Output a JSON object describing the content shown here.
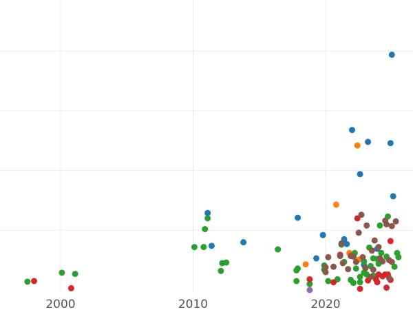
{
  "chart_data": {
    "type": "scatter",
    "title": "",
    "xlabel": "",
    "ylabel": "",
    "xlim": [
      1996.5,
      2026.8
    ],
    "ylim": [
      0,
      4.9
    ],
    "x_ticks": [
      2000,
      2010,
      2020
    ],
    "x_tick_labels": [
      "2000",
      "2010",
      "2020"
    ],
    "y_gridlines": [
      1,
      2,
      3,
      4
    ],
    "grid": true,
    "legend": "none",
    "colors": {
      "blue": "#1f77b4",
      "orange": "#ff7f0e",
      "green": "#2ca02c",
      "red": "#d62728",
      "purple": "#9467bd",
      "brown": "#8c564b"
    },
    "series": [
      {
        "color": "#1f77b4",
        "points": [
          [
            2025.0,
            3.94
          ],
          [
            2022.0,
            2.68
          ],
          [
            2023.2,
            2.48
          ],
          [
            2024.9,
            2.46
          ],
          [
            2022.6,
            1.94
          ],
          [
            2025.1,
            1.57
          ],
          [
            2011.1,
            1.29
          ],
          [
            2017.9,
            1.21
          ],
          [
            2019.8,
            0.92
          ],
          [
            2021.6,
            0.77
          ],
          [
            2011.4,
            0.74
          ],
          [
            2013.8,
            0.8
          ],
          [
            2023.9,
            0.69
          ],
          [
            2021.4,
            0.85
          ],
          [
            2019.3,
            0.53
          ],
          [
            2022.9,
            0.42
          ]
        ]
      },
      {
        "color": "#ff7f0e",
        "points": [
          [
            2022.4,
            2.42
          ],
          [
            2020.8,
            1.43
          ],
          [
            2018.5,
            0.43
          ],
          [
            2021.8,
            0.62
          ],
          [
            2022.5,
            0.51
          ]
        ]
      },
      {
        "color": "#2ca02c",
        "points": [
          [
            1997.5,
            0.14
          ],
          [
            2000.1,
            0.29
          ],
          [
            2001.1,
            0.27
          ],
          [
            2010.1,
            0.72
          ],
          [
            2010.8,
            0.72
          ],
          [
            2010.9,
            1.02
          ],
          [
            2011.1,
            1.2
          ],
          [
            2012.1,
            0.32
          ],
          [
            2012.2,
            0.45
          ],
          [
            2012.5,
            0.46
          ],
          [
            2016.4,
            0.68
          ],
          [
            2017.8,
            0.15
          ],
          [
            2017.8,
            0.33
          ],
          [
            2017.9,
            0.36
          ],
          [
            2018.8,
            0.1
          ],
          [
            2019.9,
            0.41
          ],
          [
            2019.9,
            0.34
          ],
          [
            2020.2,
            0.15
          ],
          [
            2020.9,
            0.18
          ],
          [
            2021.2,
            0.76
          ],
          [
            2021.4,
            0.47
          ],
          [
            2021.9,
            0.17
          ],
          [
            2022.2,
            0.62
          ],
          [
            2022.6,
            0.22
          ],
          [
            2022.9,
            0.29
          ],
          [
            2023.0,
            0.36
          ],
          [
            2023.4,
            0.4
          ],
          [
            2023.6,
            0.53
          ],
          [
            2024.0,
            0.44
          ],
          [
            2024.2,
            0.62
          ],
          [
            2024.6,
            0.56
          ],
          [
            2025.2,
            0.39
          ],
          [
            2025.4,
            0.62
          ],
          [
            2025.5,
            0.55
          ],
          [
            2024.7,
            1.23
          ],
          [
            2022.3,
            0.36
          ],
          [
            2022.9,
            0.48
          ],
          [
            2023.1,
            0.26
          ],
          [
            2023.6,
            0.24
          ],
          [
            2023.9,
            0.52
          ],
          [
            2024.1,
            1.08
          ],
          [
            2023.3,
            0.71
          ],
          [
            2022.1,
            0.12
          ],
          [
            2022.6,
            0.13
          ]
        ]
      },
      {
        "color": "#d62728",
        "points": [
          [
            1998.0,
            0.15
          ],
          [
            2000.8,
            0.03
          ],
          [
            2018.8,
            0.18
          ],
          [
            2020.6,
            0.13
          ],
          [
            2021.1,
            0.59
          ],
          [
            2022.4,
            1.2
          ],
          [
            2022.6,
            0.02
          ],
          [
            2023.2,
            0.16
          ],
          [
            2023.8,
            0.18
          ],
          [
            2023.9,
            0.13
          ],
          [
            2024.5,
            0.26
          ],
          [
            2024.7,
            0.26
          ],
          [
            2024.9,
            0.17
          ],
          [
            2024.6,
            0.04
          ],
          [
            2024.9,
            0.82
          ],
          [
            2024.0,
            0.26
          ],
          [
            2024.3,
            0.23
          ]
        ]
      },
      {
        "color": "#9467bd",
        "points": [
          [
            2018.8,
            0.0
          ]
        ]
      },
      {
        "color": "#8c564b",
        "points": [
          [
            2020.2,
            0.55
          ],
          [
            2020.0,
            0.38
          ],
          [
            2020.6,
            0.39
          ],
          [
            2021.2,
            0.78
          ],
          [
            2021.3,
            0.45
          ],
          [
            2021.9,
            0.57
          ],
          [
            2022.5,
            0.96
          ],
          [
            2022.7,
            1.26
          ],
          [
            2023.1,
            1.08
          ],
          [
            2023.5,
            0.66
          ],
          [
            2023.7,
            0.83
          ],
          [
            2024.0,
            0.72
          ],
          [
            2024.5,
            1.16
          ],
          [
            2024.6,
            1.1
          ],
          [
            2024.8,
            0.5
          ],
          [
            2025.0,
            0.47
          ],
          [
            2025.3,
            1.15
          ],
          [
            2025.0,
            1.07
          ],
          [
            2021.7,
            0.35
          ],
          [
            2022.3,
            0.47
          ],
          [
            2022.8,
            0.55
          ],
          [
            2023.0,
            0.37
          ],
          [
            2023.4,
            0.22
          ],
          [
            2024.1,
            0.53
          ],
          [
            2024.8,
            0.2
          ],
          [
            2020.0,
            0.3
          ],
          [
            2021.1,
            0.57
          ],
          [
            2022.1,
            0.56
          ],
          [
            2023.6,
            0.34
          ],
          [
            2024.3,
            0.48
          ]
        ]
      }
    ]
  }
}
